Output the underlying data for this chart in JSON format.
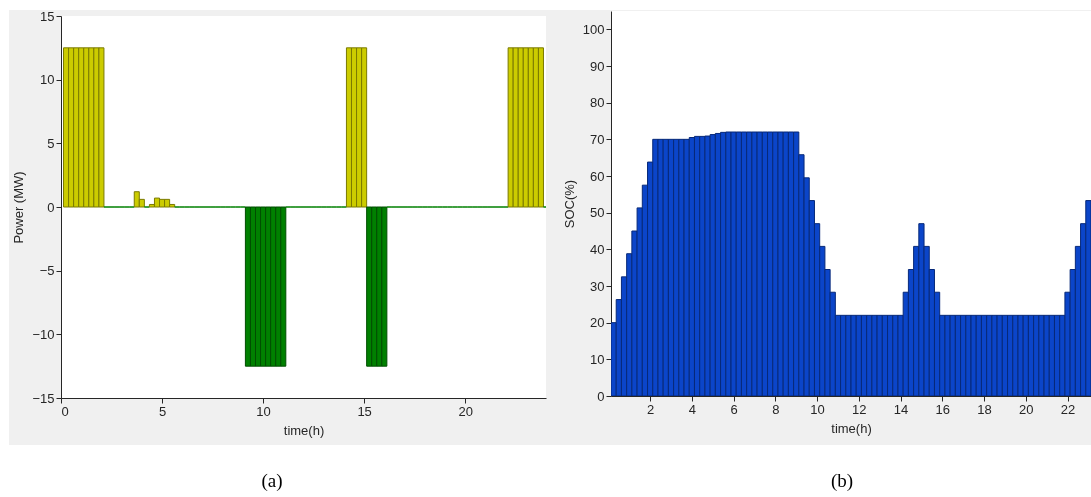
{
  "chart_data": [
    {
      "type": "bar",
      "xlabel": "time(h)",
      "ylabel": "Power (MW)",
      "xlim": [
        0,
        24
      ],
      "xticks": [
        0,
        5,
        10,
        15,
        20
      ],
      "ylim": [
        -15,
        15
      ],
      "yticks": [
        -15,
        -10,
        -5,
        0,
        5,
        10,
        15
      ],
      "annotations": [
        "(a)"
      ],
      "x": [
        0.25,
        0.5,
        0.75,
        1,
        1.25,
        1.5,
        1.75,
        2,
        2.25,
        2.5,
        2.75,
        3,
        3.25,
        3.5,
        3.75,
        4,
        4.25,
        4.5,
        4.75,
        5,
        5.25,
        5.5,
        5.75,
        6,
        6.25,
        6.5,
        6.75,
        7,
        7.25,
        7.5,
        7.75,
        8,
        8.25,
        8.5,
        8.75,
        9,
        9.25,
        9.5,
        9.75,
        10,
        10.25,
        10.5,
        10.75,
        11,
        11.25,
        11.5,
        11.75,
        12,
        12.25,
        12.5,
        12.75,
        13,
        13.25,
        13.5,
        13.75,
        14,
        14.25,
        14.5,
        14.75,
        15,
        15.25,
        15.5,
        15.75,
        16,
        16.25,
        16.5,
        16.75,
        17,
        17.25,
        17.5,
        17.75,
        18,
        18.25,
        18.5,
        18.75,
        19,
        19.25,
        19.5,
        19.75,
        20,
        20.25,
        20.5,
        20.75,
        21,
        21.25,
        21.5,
        21.75,
        22,
        22.25,
        22.5,
        22.75,
        23,
        23.25,
        23.5,
        23.75,
        24
      ],
      "values": [
        12.5,
        12.5,
        12.5,
        12.5,
        12.5,
        12.5,
        12.5,
        12.5,
        0,
        0,
        0,
        0,
        0,
        0,
        1.2,
        0.6,
        0,
        0.2,
        0.7,
        0.6,
        0.6,
        0.2,
        0,
        0,
        0,
        0,
        0,
        0,
        0,
        0,
        0,
        0,
        0,
        0,
        0,
        0,
        -12.5,
        -12.5,
        -12.5,
        -12.5,
        -12.5,
        -12.5,
        -12.5,
        -12.5,
        0,
        0,
        0,
        0,
        0,
        0,
        0,
        0,
        0,
        0,
        0,
        0,
        12.5,
        12.5,
        12.5,
        12.5,
        -12.5,
        -12.5,
        -12.5,
        -12.5,
        0,
        0,
        0,
        0,
        0,
        0,
        0,
        0,
        0,
        0,
        0,
        0,
        0,
        0,
        0,
        0,
        0,
        0,
        0,
        0,
        0,
        0,
        0,
        0,
        12.5,
        12.5,
        12.5,
        12.5,
        12.5,
        12.5,
        12.5,
        0
      ],
      "colors": [
        "#cccc00",
        "#cccc00",
        "#cccc00",
        "#cccc00",
        "#cccc00",
        "#cccc00",
        "#cccc00",
        "#cccc00",
        "#008000",
        "#008000",
        "#008000",
        "#008000",
        "#008000",
        "#008000",
        "#cccc00",
        "#cccc00",
        "#008000",
        "#cccc00",
        "#cccc00",
        "#cccc00",
        "#cccc00",
        "#cccc00",
        "#008000",
        "#008000",
        "#008000",
        "#008000",
        "#008000",
        "#008000",
        "#008000",
        "#008000",
        "#008000",
        "#008000",
        "#008000",
        "#008000",
        "#008000",
        "#008000",
        "#008000",
        "#008000",
        "#008000",
        "#008000",
        "#008000",
        "#008000",
        "#008000",
        "#008000",
        "#008000",
        "#008000",
        "#008000",
        "#008000",
        "#008000",
        "#008000",
        "#008000",
        "#008000",
        "#008000",
        "#008000",
        "#008000",
        "#008000",
        "#cccc00",
        "#cccc00",
        "#cccc00",
        "#cccc00",
        "#008000",
        "#008000",
        "#008000",
        "#008000",
        "#008000",
        "#008000",
        "#008000",
        "#008000",
        "#008000",
        "#008000",
        "#008000",
        "#008000",
        "#008000",
        "#008000",
        "#008000",
        "#008000",
        "#008000",
        "#008000",
        "#008000",
        "#008000",
        "#008000",
        "#008000",
        "#008000",
        "#008000",
        "#008000",
        "#008000",
        "#008000",
        "#008000",
        "#cccc00",
        "#cccc00",
        "#cccc00",
        "#cccc00",
        "#cccc00",
        "#cccc00",
        "#cccc00",
        "#008000"
      ]
    },
    {
      "type": "bar",
      "xlabel": "time(h)",
      "ylabel": "SOC(%)",
      "xlim": [
        0.125,
        23.125
      ],
      "xticks": [
        2,
        4,
        6,
        8,
        10,
        12,
        14,
        16,
        18,
        20,
        22
      ],
      "ylim": [
        0,
        105
      ],
      "yticks": [
        0,
        10,
        20,
        30,
        40,
        50,
        60,
        70,
        80,
        90,
        100
      ],
      "annotations": [
        "(b)"
      ],
      "color": "#0b45c9",
      "x": [
        0.25,
        0.5,
        0.75,
        1,
        1.25,
        1.5,
        1.75,
        2,
        2.25,
        2.5,
        2.75,
        3,
        3.25,
        3.5,
        3.75,
        4,
        4.25,
        4.5,
        4.75,
        5,
        5.25,
        5.5,
        5.75,
        6,
        6.25,
        6.5,
        6.75,
        7,
        7.25,
        7.5,
        7.75,
        8,
        8.25,
        8.5,
        8.75,
        9,
        9.25,
        9.5,
        9.75,
        10,
        10.25,
        10.5,
        10.75,
        11,
        11.25,
        11.5,
        11.75,
        12,
        12.25,
        12.5,
        12.75,
        13,
        13.25,
        13.5,
        13.75,
        14,
        14.25,
        14.5,
        14.75,
        15,
        15.25,
        15.5,
        15.75,
        16,
        16.25,
        16.5,
        16.75,
        17,
        17.25,
        17.5,
        17.75,
        18,
        18.25,
        18.5,
        18.75,
        19,
        19.25,
        19.5,
        19.75,
        20,
        20.25,
        20.5,
        20.75,
        21,
        21.25,
        21.5,
        21.75,
        22,
        22.25,
        22.5,
        22.75,
        23
      ],
      "values": [
        20,
        26.3,
        32.5,
        38.8,
        45,
        51.3,
        57.5,
        63.8,
        70,
        70,
        70,
        70,
        70,
        70,
        70,
        70.5,
        70.8,
        70.8,
        70.9,
        71.3,
        71.6,
        71.9,
        72,
        72,
        72,
        72,
        72,
        72,
        72,
        72,
        72,
        72,
        72,
        72,
        72,
        72,
        65.8,
        59.5,
        53.3,
        47,
        40.8,
        34.5,
        28.3,
        22,
        22,
        22,
        22,
        22,
        22,
        22,
        22,
        22,
        22,
        22,
        22,
        22,
        28.3,
        34.5,
        40.8,
        47,
        40.8,
        34.5,
        28.3,
        22,
        22,
        22,
        22,
        22,
        22,
        22,
        22,
        22,
        22,
        22,
        22,
        22,
        22,
        22,
        22,
        22,
        22,
        22,
        22,
        22,
        22,
        22,
        22,
        28.3,
        34.5,
        40.8,
        47,
        53.3
      ]
    }
  ]
}
